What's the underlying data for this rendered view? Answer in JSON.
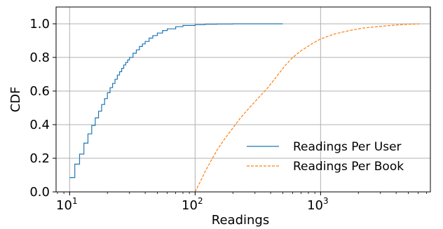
{
  "chart_data": {
    "type": "line",
    "xlabel": "Readings",
    "ylabel": "CDF",
    "xscale": "log",
    "xlim": [
      7.8,
      7500
    ],
    "ylim": [
      0.0,
      1.1
    ],
    "xticks": [
      {
        "value": 10,
        "base": "10",
        "exp": "1"
      },
      {
        "value": 100,
        "base": "10",
        "exp": "2"
      },
      {
        "value": 1000,
        "base": "10",
        "exp": "3"
      }
    ],
    "yticks": [
      "0.0",
      "0.2",
      "0.4",
      "0.6",
      "0.8",
      "1.0"
    ],
    "grid": true,
    "legend_position": "lower-right",
    "series": [
      {
        "name": "Readings Per User",
        "color": "#1f77b4",
        "style": "solid",
        "steps": true,
        "x": [
          10,
          11,
          12,
          13,
          14,
          15,
          16,
          17,
          18,
          19,
          20,
          21,
          22,
          23,
          24,
          25,
          26,
          27,
          28,
          29,
          30,
          32,
          34,
          36,
          38,
          40,
          43,
          46,
          50,
          55,
          60,
          70,
          80,
          100,
          120,
          150,
          200,
          300,
          500
        ],
        "y": [
          0.085,
          0.165,
          0.225,
          0.29,
          0.345,
          0.395,
          0.44,
          0.48,
          0.52,
          0.555,
          0.59,
          0.62,
          0.645,
          0.67,
          0.695,
          0.715,
          0.735,
          0.755,
          0.77,
          0.785,
          0.8,
          0.825,
          0.845,
          0.865,
          0.88,
          0.895,
          0.915,
          0.93,
          0.945,
          0.96,
          0.97,
          0.983,
          0.99,
          0.995,
          0.998,
          0.999,
          1.0,
          1.0,
          1.0
        ]
      },
      {
        "name": "Readings Per Book",
        "color": "#ff7f0e",
        "style": "dashed",
        "steps": false,
        "x": [
          100,
          110,
          120,
          135,
          150,
          170,
          200,
          230,
          270,
          320,
          380,
          450,
          520,
          600,
          700,
          850,
          1000,
          1300,
          1700,
          2200,
          3000,
          4000,
          5000,
          6300
        ],
        "y": [
          0.0,
          0.06,
          0.12,
          0.19,
          0.25,
          0.31,
          0.38,
          0.44,
          0.5,
          0.56,
          0.62,
          0.69,
          0.75,
          0.8,
          0.84,
          0.88,
          0.91,
          0.94,
          0.96,
          0.975,
          0.985,
          0.993,
          0.997,
          1.0
        ]
      }
    ]
  }
}
